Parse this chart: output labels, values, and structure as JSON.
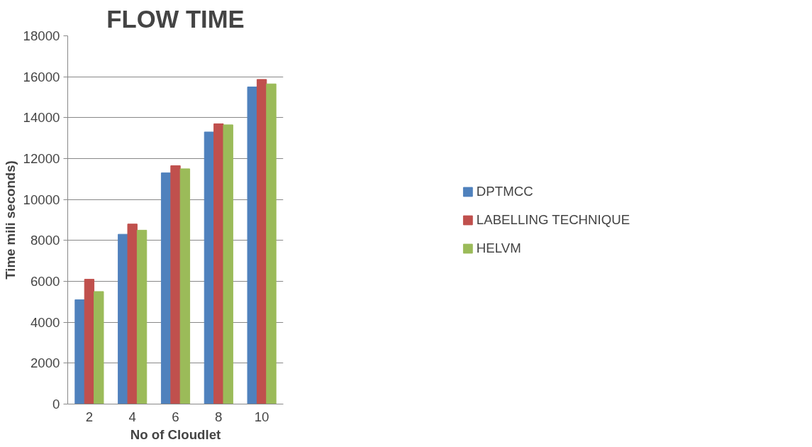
{
  "chart_data": {
    "type": "bar",
    "title": "FLOW TIME",
    "xlabel": "No of Cloudlet",
    "ylabel": "Time mili seconds)",
    "categories": [
      "2",
      "4",
      "6",
      "8",
      "10"
    ],
    "series": [
      {
        "name": "DPTMCC",
        "color": "#4f81bd",
        "values": [
          5100,
          8300,
          11300,
          13300,
          15500
        ]
      },
      {
        "name": "LABELLING TECHNIQUE",
        "color": "#c0504d",
        "values": [
          6100,
          8800,
          11650,
          13700,
          15870
        ]
      },
      {
        "name": "HELVM",
        "color": "#9bbb59",
        "values": [
          5500,
          8500,
          11500,
          13650,
          15650
        ]
      }
    ],
    "ylim": [
      0,
      18000
    ],
    "yticks": [
      0,
      2000,
      4000,
      6000,
      8000,
      10000,
      12000,
      14000,
      16000,
      18000
    ],
    "grid": "y",
    "legend": "right"
  }
}
